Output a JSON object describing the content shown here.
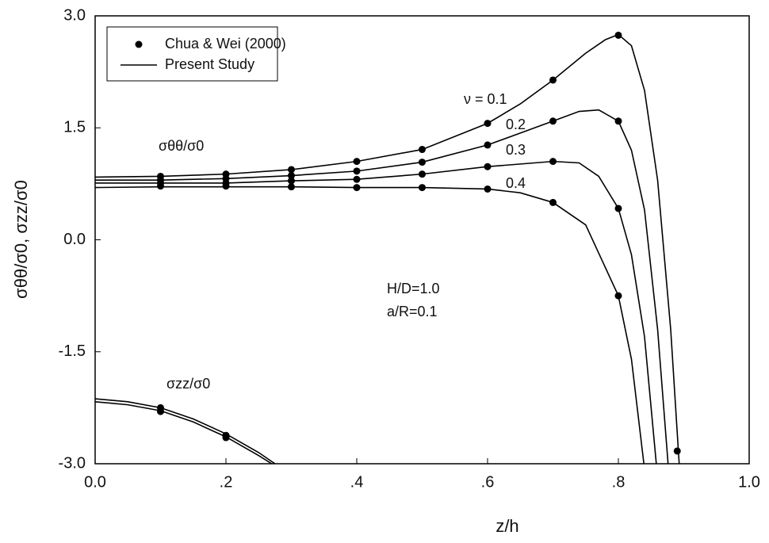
{
  "chart_data": {
    "type": "line",
    "x_label": "z/h",
    "y_label": "σθθ/σ0, σzz/σ0",
    "xlim": [
      0,
      1
    ],
    "ylim": [
      -3,
      3
    ],
    "xticks": [
      {
        "value": 0,
        "label": "0.0"
      },
      {
        "value": 0.2,
        "label": ".2"
      },
      {
        "value": 0.4,
        "label": ".4"
      },
      {
        "value": 0.6,
        "label": ".6"
      },
      {
        "value": 0.8,
        "label": ".8"
      },
      {
        "value": 1,
        "label": "1.0"
      }
    ],
    "yticks": [
      {
        "value": -3,
        "label": "-3.0"
      },
      -1.5,
      {
        "value": 0,
        "label": "0.0"
      },
      1.5,
      {
        "value": 3,
        "label": "3.0"
      }
    ],
    "legend": "upper left",
    "annotations": [
      "σθθ/σ0",
      "σzz/σ0",
      "H/D=1.0",
      "a/R=0.1"
    ],
    "series": [
      {
        "name": "Chua & Wei (2000)",
        "style": "points",
        "color": "#000000",
        "groups": [
          {
            "x": [
              0.1,
              0.2,
              0.3,
              0.4,
              0.5,
              0.6,
              0.7,
              0.8,
              0.89
            ],
            "values": [
              0.85,
              0.88,
              0.94,
              1.05,
              1.21,
              1.56,
              2.14,
              2.74,
              -2.83
            ]
          },
          {
            "x": [
              0.1,
              0.2,
              0.3,
              0.4,
              0.5,
              0.6,
              0.7,
              0.8
            ],
            "values": [
              0.8,
              0.82,
              0.86,
              0.92,
              1.04,
              1.27,
              1.59,
              1.59
            ]
          },
          {
            "x": [
              0.1,
              0.2,
              0.3,
              0.4,
              0.5,
              0.6,
              0.7,
              0.8
            ],
            "values": [
              0.76,
              0.76,
              0.79,
              0.81,
              0.88,
              0.98,
              1.05,
              0.42
            ]
          },
          {
            "x": [
              0.1,
              0.2,
              0.3,
              0.4,
              0.5,
              0.6,
              0.7,
              0.8
            ],
            "values": [
              0.72,
              0.72,
              0.71,
              0.7,
              0.7,
              0.68,
              0.5,
              -0.75
            ]
          },
          {
            "x": [
              0.1,
              0.1,
              0.2,
              0.2
            ],
            "values": [
              -2.25,
              -2.3,
              -2.62,
              -2.65
            ]
          }
        ]
      },
      {
        "name": "Present Study",
        "style": "line",
        "color": "#000000",
        "groups": [
          {
            "label": "ν = 0.1",
            "x": [
              0,
              0.1,
              0.2,
              0.3,
              0.4,
              0.5,
              0.6,
              0.65,
              0.7,
              0.75,
              0.78,
              0.8,
              0.82,
              0.84,
              0.86,
              0.88,
              0.893
            ],
            "values": [
              0.84,
              0.85,
              0.88,
              0.94,
              1.05,
              1.21,
              1.56,
              1.82,
              2.14,
              2.5,
              2.68,
              2.75,
              2.6,
              2.0,
              0.8,
              -1.2,
              -3.0
            ]
          },
          {
            "label": "0.2",
            "x": [
              0,
              0.1,
              0.2,
              0.3,
              0.4,
              0.5,
              0.6,
              0.65,
              0.7,
              0.74,
              0.77,
              0.8,
              0.82,
              0.84,
              0.86,
              0.876
            ],
            "values": [
              0.8,
              0.8,
              0.82,
              0.86,
              0.92,
              1.04,
              1.27,
              1.43,
              1.59,
              1.72,
              1.74,
              1.59,
              1.2,
              0.4,
              -1.2,
              -3.0
            ]
          },
          {
            "label": "0.3",
            "x": [
              0,
              0.1,
              0.2,
              0.3,
              0.4,
              0.5,
              0.6,
              0.7,
              0.74,
              0.77,
              0.8,
              0.82,
              0.84,
              0.858
            ],
            "values": [
              0.76,
              0.76,
              0.76,
              0.79,
              0.81,
              0.88,
              0.98,
              1.05,
              1.03,
              0.85,
              0.42,
              -0.2,
              -1.3,
              -3.0
            ]
          },
          {
            "label": "0.4",
            "x": [
              0,
              0.1,
              0.2,
              0.3,
              0.4,
              0.5,
              0.6,
              0.65,
              0.7,
              0.75,
              0.8,
              0.82,
              0.839
            ],
            "values": [
              0.7,
              0.71,
              0.71,
              0.71,
              0.7,
              0.7,
              0.68,
              0.63,
              0.5,
              0.2,
              -0.75,
              -1.6,
              -3.0
            ]
          },
          {
            "x": [
              0,
              0.05,
              0.1,
              0.15,
              0.2,
              0.25,
              0.275
            ],
            "values": [
              -2.13,
              -2.17,
              -2.25,
              -2.4,
              -2.6,
              -2.85,
              -3.0
            ]
          },
          {
            "x": [
              0,
              0.05,
              0.1,
              0.15,
              0.2,
              0.25,
              0.27
            ],
            "values": [
              -2.17,
              -2.21,
              -2.29,
              -2.44,
              -2.64,
              -2.89,
              -3.0
            ]
          }
        ]
      }
    ]
  }
}
